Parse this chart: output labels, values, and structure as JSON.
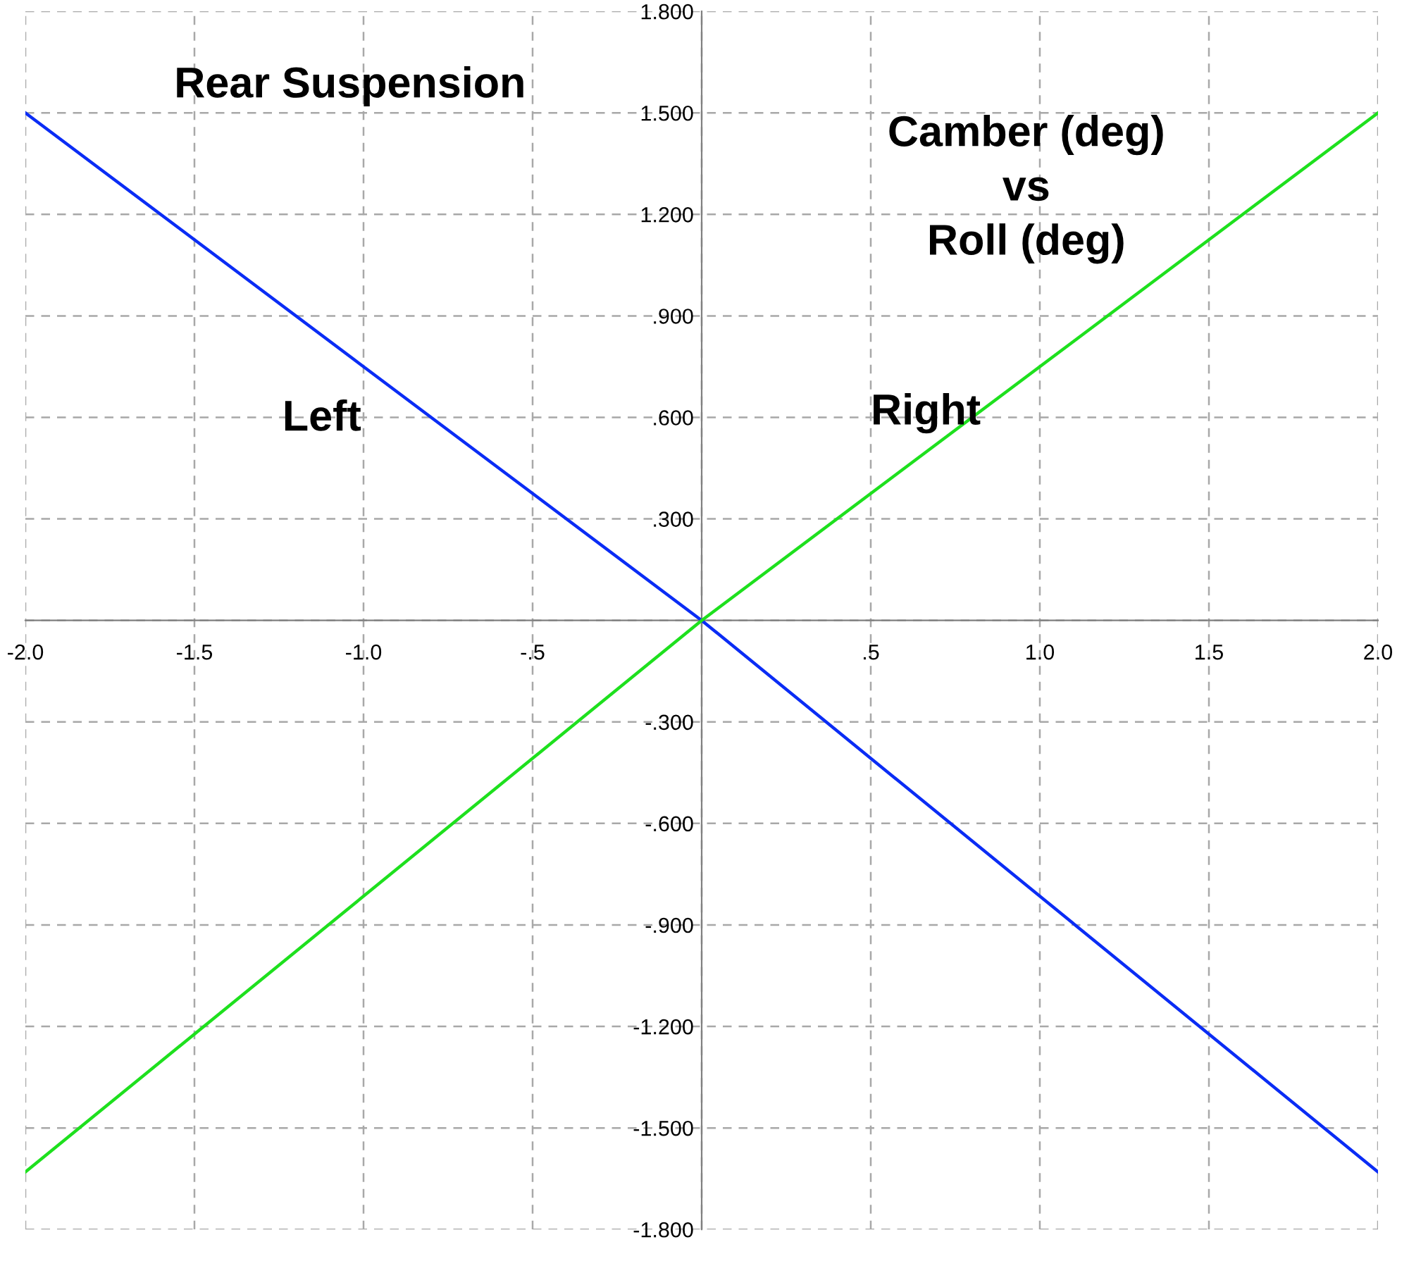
{
  "chart_data": {
    "type": "line",
    "annotations": [
      "Rear Suspension",
      "Camber (deg)\nvs\nRoll (deg)"
    ],
    "x": [
      -2.0,
      0.0,
      2.0
    ],
    "series": [
      {
        "name": "Left",
        "color": "#0a2cf5",
        "values": [
          1.5,
          0.0,
          -1.63
        ]
      },
      {
        "name": "Right",
        "color": "#1ee01e",
        "values": [
          -1.63,
          0.0,
          1.5
        ]
      }
    ],
    "xlim": [
      -2.0,
      2.0
    ],
    "xticks": [
      {
        "value": -2.0,
        "label": "-2.0"
      },
      {
        "value": -1.5,
        "label": "-1.5"
      },
      {
        "value": -1.0,
        "label": "-1.0"
      },
      {
        "value": -0.5,
        "label": "-.5"
      },
      {
        "value": 0,
        "label": null
      },
      {
        "value": 0.5,
        "label": ".5"
      },
      {
        "value": 1.0,
        "label": "1.0"
      },
      {
        "value": 1.5,
        "label": "1.5"
      },
      {
        "value": 2.0,
        "label": "2.0"
      }
    ],
    "ylim": [
      -1.8,
      1.8
    ],
    "yticks": [
      {
        "value": -1.8,
        "label": "-1.800"
      },
      {
        "value": -1.5,
        "label": "-1.500"
      },
      {
        "value": -1.2,
        "label": "-1.200"
      },
      {
        "value": -0.9,
        "label": "-.900"
      },
      {
        "value": -0.6,
        "label": "-.600"
      },
      {
        "value": -0.3,
        "label": "-.300"
      },
      {
        "value": 0,
        "label": null
      },
      {
        "value": 0.3,
        "label": ".300"
      },
      {
        "value": 0.6,
        "label": ".600"
      },
      {
        "value": 0.9,
        "label": ".900"
      },
      {
        "value": 1.2,
        "label": "1.200"
      },
      {
        "value": 1.5,
        "label": "1.500"
      },
      {
        "value": 1.8,
        "label": "1.800"
      }
    ],
    "grid": true,
    "line_style": "solid",
    "legend": false
  }
}
